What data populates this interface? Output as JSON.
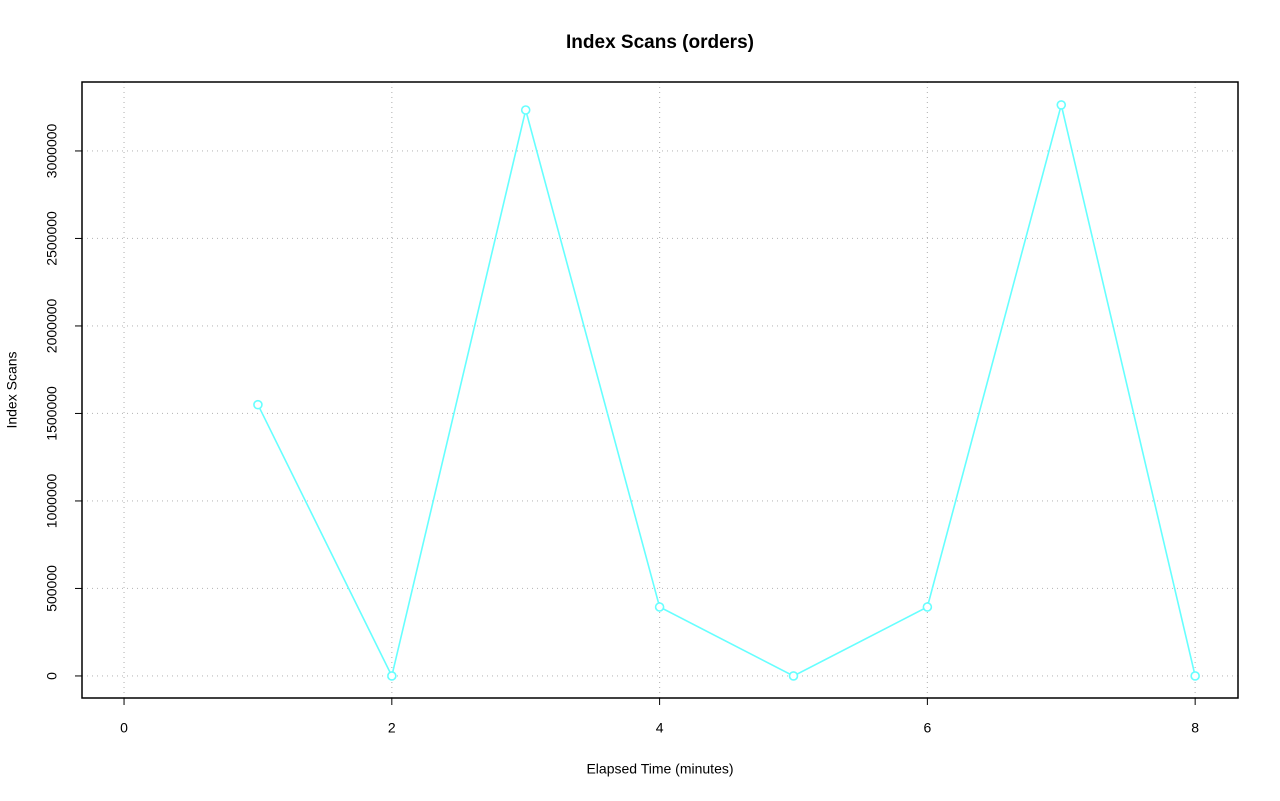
{
  "chart_data": {
    "type": "line",
    "title": "Index Scans (orders)",
    "x_label": "Elapsed Time (minutes)",
    "y_label": "Index Scans",
    "x": [
      1,
      2,
      3,
      4,
      5,
      6,
      7,
      8
    ],
    "values": [
      1550000,
      0,
      3234000,
      394000,
      0,
      394000,
      3263000,
      0
    ],
    "color": "#66ffff",
    "xlim": [
      -0.314,
      8.32
    ],
    "xticks": [
      0,
      2,
      4,
      6,
      8
    ],
    "ylim": [
      -126000,
      3394000
    ],
    "yticks": [
      0,
      500000,
      1000000,
      1500000,
      2000000,
      2500000,
      3000000
    ],
    "grid": true
  }
}
